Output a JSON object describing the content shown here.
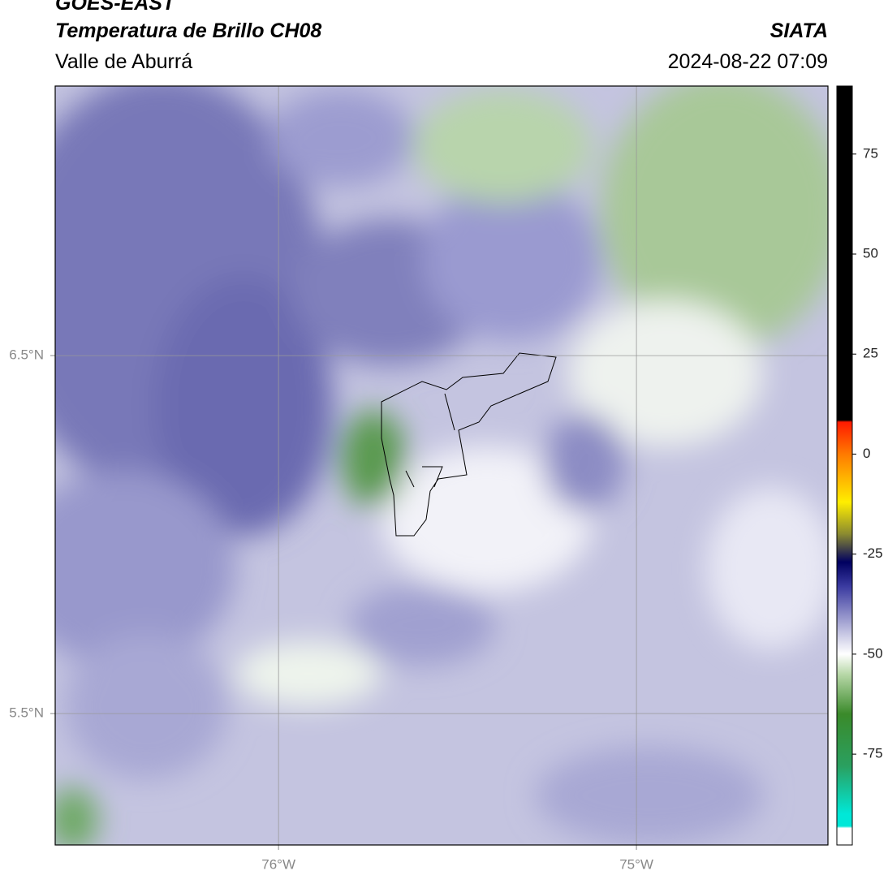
{
  "header": {
    "title": "GOES-EAST",
    "subtitle": "Temperatura de Brillo CH08",
    "region": "Valle de Aburrá",
    "source": "SIATA",
    "datetime": "2024-08-22 07:09"
  },
  "map": {
    "lon_range": [
      -76.624,
      -74.465
    ],
    "lat_range": [
      5.133,
      7.253
    ],
    "lon_ticks": [
      {
        "value": -76,
        "label": "76°W"
      },
      {
        "value": -75,
        "label": "75°W"
      }
    ],
    "lat_ticks": [
      {
        "value": 6.5,
        "label": "6.5°N"
      },
      {
        "value": 5.5,
        "label": "5.5°N"
      }
    ]
  },
  "colorbar": {
    "range": [
      -97.7,
      92
    ],
    "ticks": [
      75,
      50,
      25,
      0,
      -25,
      -50,
      -75
    ],
    "stops": [
      {
        "value": 92,
        "color": "#000000"
      },
      {
        "value": 8.5,
        "color": "#000000"
      },
      {
        "value": 8,
        "color": "#ff1a00"
      },
      {
        "value": 0,
        "color": "#ff7a00"
      },
      {
        "value": -12,
        "color": "#ffee00"
      },
      {
        "value": -20,
        "color": "#8a8a30"
      },
      {
        "value": -27,
        "color": "#000060"
      },
      {
        "value": -33,
        "color": "#3a3aa0"
      },
      {
        "value": -45,
        "color": "#c8c8e4"
      },
      {
        "value": -50,
        "color": "#ffffff"
      },
      {
        "value": -55,
        "color": "#b8d8a8"
      },
      {
        "value": -65,
        "color": "#3a8a2a"
      },
      {
        "value": -78,
        "color": "#2aa060"
      },
      {
        "value": -90,
        "color": "#00e8d8"
      },
      {
        "value": -93,
        "color": "#00e8d8"
      },
      {
        "value": -93.5,
        "color": "#ffffff"
      },
      {
        "value": -97.7,
        "color": "#ffffff"
      }
    ]
  }
}
